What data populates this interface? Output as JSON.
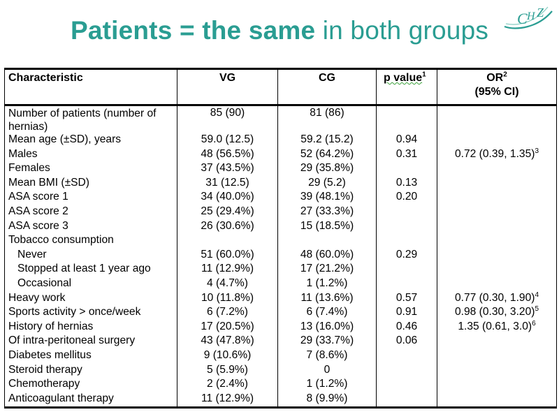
{
  "title": {
    "bold": "Patients = the same",
    "rest": " in both groups"
  },
  "logo": {
    "icon": "chz-logo",
    "text": "CHZ",
    "color": "#2a9d92"
  },
  "table": {
    "headers": {
      "characteristic": "Characteristic",
      "vg": "VG",
      "cg": "CG",
      "p_value": "p value",
      "p_value_sup": "1",
      "or_line1": "OR",
      "or_sup": "2",
      "or_line2": "(95% CI)"
    },
    "rows": [
      {
        "label": "Number of patients (number of hernias)",
        "vg": "85 (90)",
        "cg": "81 (86)",
        "p": "",
        "or": "",
        "or_sup": ""
      },
      {
        "label": "Mean age (±SD), years",
        "vg": "59.0 (12.5)",
        "cg": "59.2 (15.2)",
        "p": "0.94",
        "or": "",
        "or_sup": ""
      },
      {
        "label": "Males",
        "vg": "48 (56.5%)",
        "cg": "52 (64.2%)",
        "p": "0.31",
        "or": "0.72 (0.39, 1.35)",
        "or_sup": "3"
      },
      {
        "label": "Females",
        "vg": "37 (43.5%)",
        "cg": "29 (35.8%)",
        "p": "",
        "or": "",
        "or_sup": ""
      },
      {
        "label": "Mean BMI (±SD)",
        "vg": "31 (12.5)",
        "cg": "29 (5.2)",
        "p": "0.13",
        "or": "",
        "or_sup": ""
      },
      {
        "label": "ASA score 1",
        "vg": "34 (40.0%)",
        "cg": "39 (48.1%)",
        "p": "0.20",
        "or": "",
        "or_sup": ""
      },
      {
        "label": "ASA score 2",
        "vg": "25 (29.4%)",
        "cg": "27 (33.3%)",
        "p": "",
        "or": "",
        "or_sup": ""
      },
      {
        "label": "ASA score 3",
        "vg": "26 (30.6%)",
        "cg": "15 (18.5%)",
        "p": "",
        "or": "",
        "or_sup": ""
      },
      {
        "label": "Tobacco consumption",
        "vg": "",
        "cg": "",
        "p": "",
        "or": "",
        "or_sup": ""
      },
      {
        "label": "Never",
        "vg": "51 (60.0%)",
        "cg": "48 (60.0%)",
        "p": "0.29",
        "or": "",
        "or_sup": "",
        "indent": true
      },
      {
        "label": "Stopped at least 1 year ago",
        "vg": "11 (12.9%)",
        "cg": "17 (21.2%)",
        "p": "",
        "or": "",
        "or_sup": "",
        "indent": true
      },
      {
        "label": "Occasional",
        "vg": "4 (4.7%)",
        "cg": "1 (1.2%)",
        "p": "",
        "or": "",
        "or_sup": "",
        "indent": true
      },
      {
        "label": "Heavy work",
        "vg": "10 (11.8%)",
        "cg": "11 (13.6%)",
        "p": "0.57",
        "or": "0.77 (0.30, 1.90)",
        "or_sup": "4"
      },
      {
        "label": "Sports activity > once/week",
        "vg": "6 (7.2%)",
        "cg": "6 (7.4%)",
        "p": "0.91",
        "or": "0.98 (0.30, 3.20)",
        "or_sup": "5"
      },
      {
        "label": "History of hernias",
        "vg": "17 (20.5%)",
        "cg": "13 (16.0%)",
        "p": "0.46",
        "or": "1.35 (0.61, 3.0)",
        "or_sup": "6"
      },
      {
        "label": "Of intra-peritoneal surgery",
        "vg": "43 (47.8%)",
        "cg": "29 (33.7%)",
        "p": "0.06",
        "or": "",
        "or_sup": ""
      },
      {
        "label": "Diabetes mellitus",
        "vg": "9 (10.6%)",
        "cg": "7 (8.6%)",
        "p": "",
        "or": "",
        "or_sup": ""
      },
      {
        "label": "Steroid therapy",
        "vg": "5 (5.9%)",
        "cg": "0",
        "p": "",
        "or": "",
        "or_sup": ""
      },
      {
        "label": "Chemotherapy",
        "vg": "2 (2.4%)",
        "cg": "1 (1.2%)",
        "p": "",
        "or": "",
        "or_sup": ""
      },
      {
        "label": "Anticoagulant therapy",
        "vg": "11 (12.9%)",
        "cg": "8 (9.9%)",
        "p": "",
        "or": "",
        "or_sup": ""
      }
    ]
  }
}
